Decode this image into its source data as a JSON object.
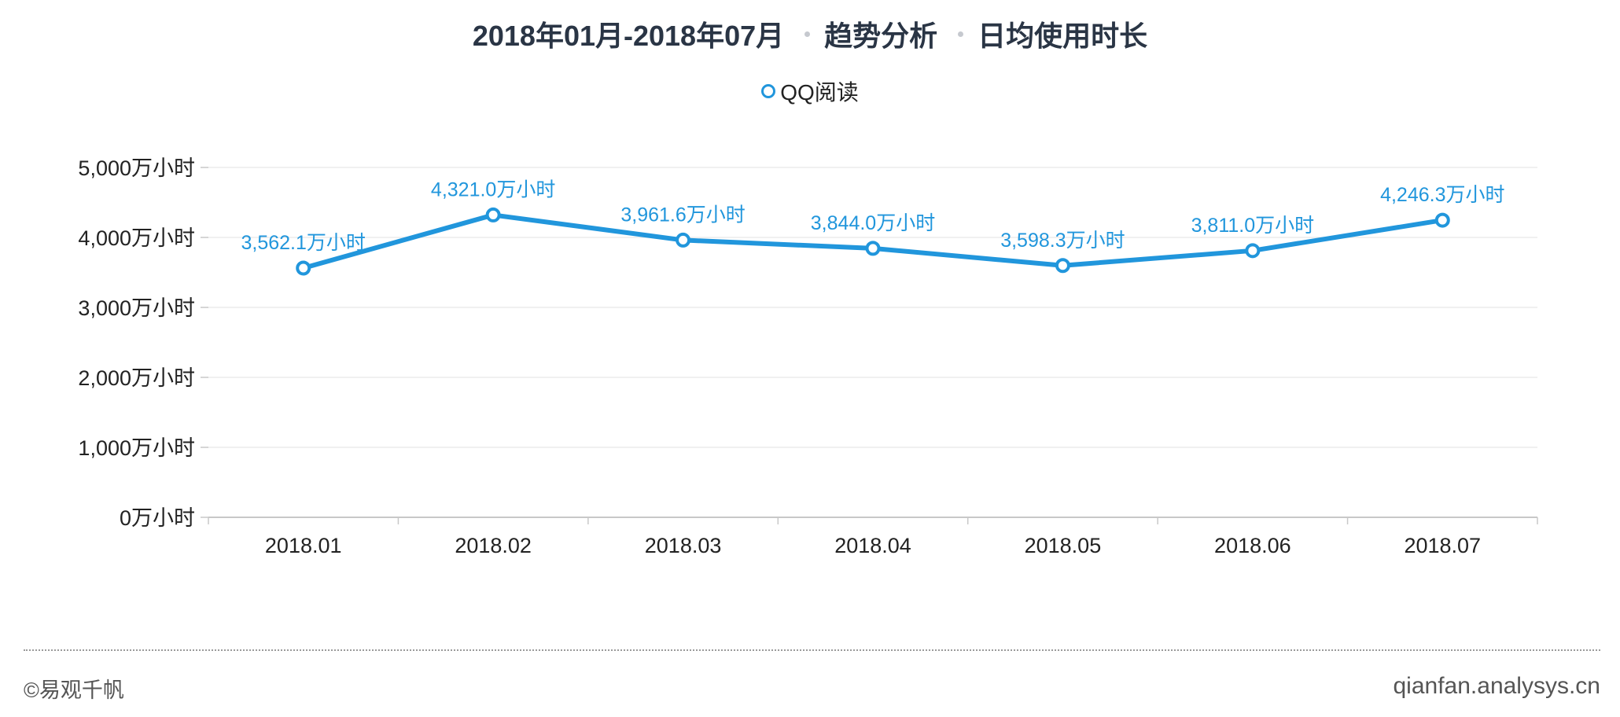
{
  "chart_data": {
    "type": "line",
    "title_parts": [
      "2018年01月-2018年07月",
      "趋势分析",
      "日均使用时长"
    ],
    "categories": [
      "2018.01",
      "2018.02",
      "2018.03",
      "2018.04",
      "2018.05",
      "2018.06",
      "2018.07"
    ],
    "series": [
      {
        "name": "QQ阅读",
        "color": "#2196dc",
        "values": [
          3562.1,
          4321.0,
          3961.6,
          3844.0,
          3598.3,
          3811.0,
          4246.3
        ],
        "labels": [
          "3,562.1万小时",
          "4,321.0万小时",
          "3,961.6万小时",
          "3,844.0万小时",
          "3,598.3万小时",
          "3,811.0万小时",
          "4,246.3万小时"
        ]
      }
    ],
    "y_ticks": [
      0,
      1000,
      2000,
      3000,
      4000,
      5000
    ],
    "y_tick_labels": [
      "0万小时",
      "1,000万小时",
      "2,000万小时",
      "3,000万小时",
      "4,000万小时",
      "5,000万小时"
    ],
    "ylim": [
      0,
      5000
    ],
    "grid": true,
    "legend_position": "top-center"
  },
  "footer": {
    "copyright": "©易观千帆",
    "site": "qianfan.analysys.cn"
  }
}
